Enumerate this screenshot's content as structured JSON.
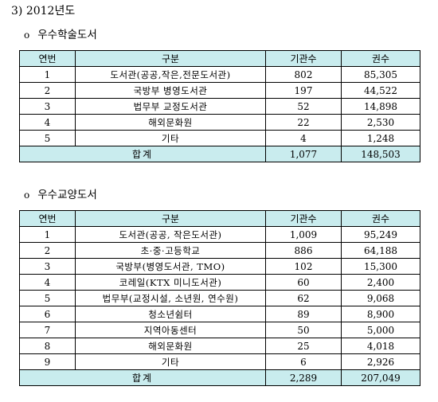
{
  "heading": "3) 2012년도",
  "bullet_symbol": "o",
  "sections": [
    {
      "title": "우수학술도서",
      "columns": [
        "연번",
        "구분",
        "기관수",
        "권수"
      ],
      "rows": [
        {
          "no": "1",
          "name": "도서관(공공,작은,전문도서관)",
          "orgs": "802",
          "volumes": "85,305"
        },
        {
          "no": "2",
          "name": "국방부 병영도서관",
          "orgs": "197",
          "volumes": "44,522"
        },
        {
          "no": "3",
          "name": "법무부 교정도서관",
          "orgs": "52",
          "volumes": "14,898"
        },
        {
          "no": "4",
          "name": "해외문화원",
          "orgs": "22",
          "volumes": "2,530"
        },
        {
          "no": "5",
          "name": "기타",
          "orgs": "4",
          "volumes": "1,248"
        }
      ],
      "total": {
        "label": "합계",
        "orgs": "1,077",
        "volumes": "148,503"
      }
    },
    {
      "title": "우수교양도서",
      "columns": [
        "연번",
        "구분",
        "기관수",
        "권수"
      ],
      "rows": [
        {
          "no": "1",
          "name": "도서관(공공, 작은도서관)",
          "orgs": "1,009",
          "volumes": "95,249"
        },
        {
          "no": "2",
          "name": "초·중·고등학교",
          "orgs": "886",
          "volumes": "64,188"
        },
        {
          "no": "3",
          "name": "국방부(병영도서관, TMO)",
          "orgs": "102",
          "volumes": "15,300"
        },
        {
          "no": "4",
          "name": "코레일(KTX 미니도서관)",
          "orgs": "60",
          "volumes": "2,400"
        },
        {
          "no": "5",
          "name": "법무부(교정시설, 소년원, 연수원)",
          "orgs": "62",
          "volumes": "9,068"
        },
        {
          "no": "6",
          "name": "청소년쉼터",
          "orgs": "89",
          "volumes": "8,900"
        },
        {
          "no": "7",
          "name": "지역아동센터",
          "orgs": "50",
          "volumes": "5,000"
        },
        {
          "no": "8",
          "name": "해외문화원",
          "orgs": "25",
          "volumes": "4,018"
        },
        {
          "no": "9",
          "name": "기타",
          "orgs": "6",
          "volumes": "2,926"
        }
      ],
      "total": {
        "label": "합계",
        "orgs": "2,289",
        "volumes": "207,049"
      }
    }
  ]
}
